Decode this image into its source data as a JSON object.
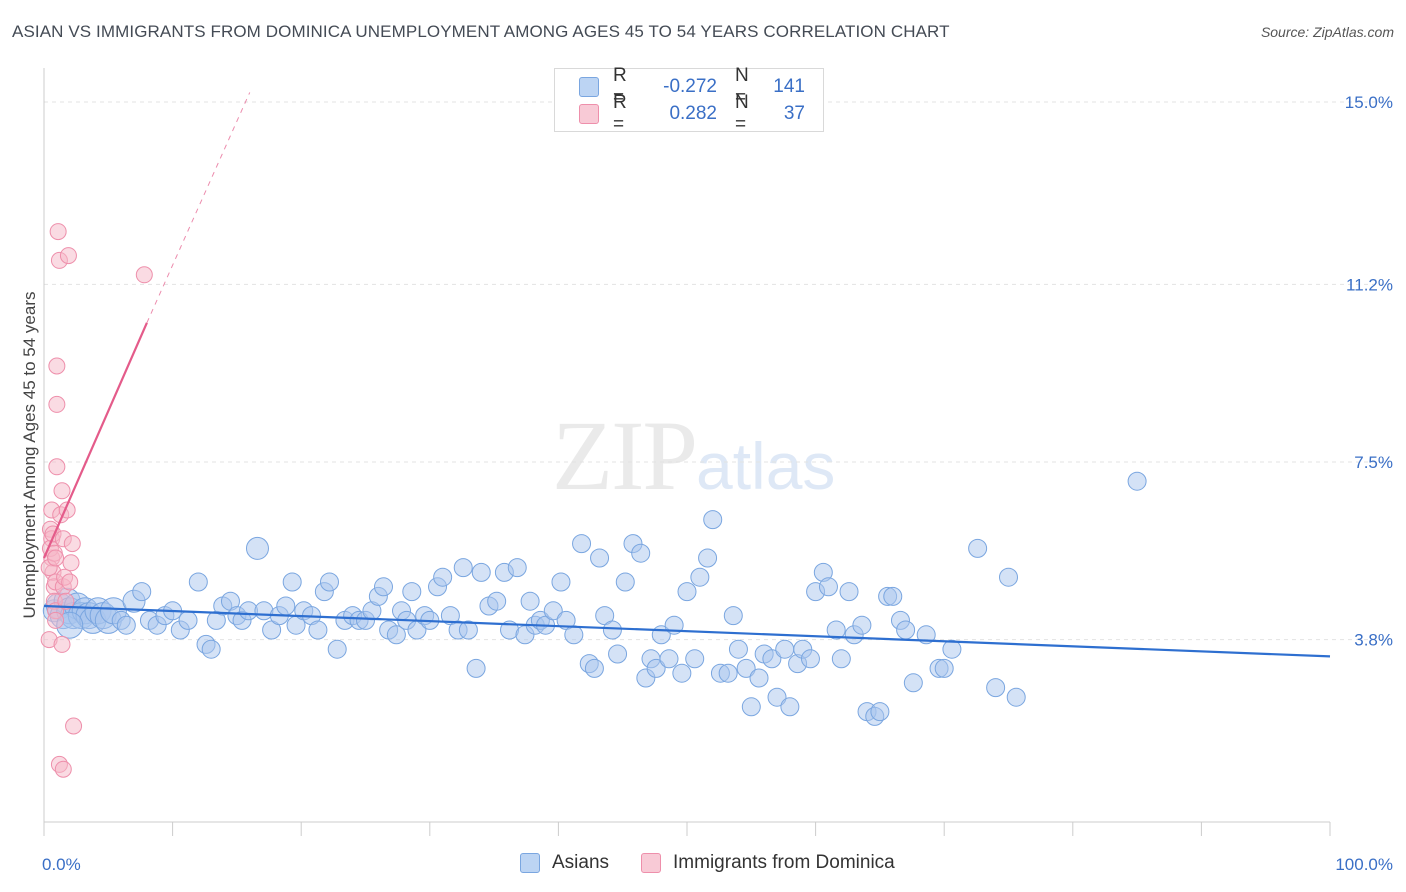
{
  "title": "ASIAN VS IMMIGRANTS FROM DOMINICA UNEMPLOYMENT AMONG AGES 45 TO 54 YEARS CORRELATION CHART",
  "source": "Source: ZipAtlas.com",
  "watermark": {
    "zip": "ZIP",
    "atlas": "atlas"
  },
  "legend_top": [
    {
      "r_label": "R =",
      "r_value": "-0.272",
      "n_label": "N =",
      "n_value": "141",
      "color": "#a9c6ee"
    },
    {
      "r_label": "R =",
      "r_value": "0.282",
      "n_label": "N =",
      "n_value": "37",
      "color": "#f5b8c8"
    }
  ],
  "legend_bottom": [
    {
      "label": "Asians",
      "color": "#a9c6ee"
    },
    {
      "label": "Immigrants from Dominica",
      "color": "#f5b8c8"
    }
  ],
  "colors": {
    "blue_fill": "#a9c6ee",
    "blue_stroke": "#7aa6e0",
    "blue_line": "#2e6fd0",
    "pink_fill": "#f5b8c8",
    "pink_stroke": "#ee8fab",
    "pink_line": "#e45b8a",
    "axis_text": "#3a6fc6",
    "grid": "#e3e3e3"
  },
  "chart_data": {
    "type": "scatter",
    "title": "ASIAN VS IMMIGRANTS FROM DOMINICA UNEMPLOYMENT AMONG AGES 45 TO 54 YEARS CORRELATION CHART",
    "xlabel": "",
    "ylabel": "Unemployment Among Ages 45 to 54 years",
    "xlim": [
      0,
      100
    ],
    "ylim": [
      0,
      15.5
    ],
    "x_tick_labels": [
      "0.0%",
      "100.0%"
    ],
    "y_ticks": [
      3.8,
      7.5,
      11.2,
      15.0
    ],
    "y_tick_labels": [
      "3.8%",
      "7.5%",
      "11.2%",
      "15.0%"
    ],
    "series": [
      {
        "name": "Asians",
        "r": -0.272,
        "n": 141,
        "trend": {
          "x": [
            0,
            100
          ],
          "y": [
            4.5,
            3.45
          ]
        },
        "points": [
          [
            0.8,
            4.4
          ],
          [
            1.2,
            4.5
          ],
          [
            1.5,
            4.3
          ],
          [
            1.8,
            4.6
          ],
          [
            2.0,
            4.4
          ],
          [
            2.3,
            4.3
          ],
          [
            2.6,
            4.5
          ],
          [
            2.9,
            4.3
          ],
          [
            3.2,
            4.4
          ],
          [
            3.5,
            4.3
          ],
          [
            3.8,
            4.2
          ],
          [
            4.2,
            4.4
          ],
          [
            4.6,
            4.3
          ],
          [
            5.0,
            4.2
          ],
          [
            5.4,
            4.4
          ],
          [
            6.0,
            4.2
          ],
          [
            6.4,
            4.1
          ],
          [
            7.0,
            4.6
          ],
          [
            7.6,
            4.8
          ],
          [
            8.2,
            4.2
          ],
          [
            8.8,
            4.1
          ],
          [
            9.4,
            4.3
          ],
          [
            10.0,
            4.4
          ],
          [
            10.6,
            4.0
          ],
          [
            11.2,
            4.2
          ],
          [
            12.0,
            5.0
          ],
          [
            12.6,
            3.7
          ],
          [
            13.0,
            3.6
          ],
          [
            13.4,
            4.2
          ],
          [
            13.9,
            4.5
          ],
          [
            14.5,
            4.6
          ],
          [
            15.0,
            4.3
          ],
          [
            15.4,
            4.2
          ],
          [
            15.9,
            4.4
          ],
          [
            16.6,
            5.7
          ],
          [
            17.1,
            4.4
          ],
          [
            17.7,
            4.0
          ],
          [
            18.3,
            4.3
          ],
          [
            18.8,
            4.5
          ],
          [
            19.3,
            5.0
          ],
          [
            19.6,
            4.1
          ],
          [
            20.2,
            4.4
          ],
          [
            20.8,
            4.3
          ],
          [
            21.3,
            4.0
          ],
          [
            21.8,
            4.8
          ],
          [
            22.2,
            5.0
          ],
          [
            22.8,
            3.6
          ],
          [
            23.4,
            4.2
          ],
          [
            24.0,
            4.3
          ],
          [
            24.5,
            4.2
          ],
          [
            25.0,
            4.2
          ],
          [
            25.5,
            4.4
          ],
          [
            26.0,
            4.7
          ],
          [
            26.4,
            4.9
          ],
          [
            26.8,
            4.0
          ],
          [
            27.4,
            3.9
          ],
          [
            27.8,
            4.4
          ],
          [
            28.2,
            4.2
          ],
          [
            28.6,
            4.8
          ],
          [
            29.0,
            4.0
          ],
          [
            29.6,
            4.3
          ],
          [
            30.0,
            4.2
          ],
          [
            30.6,
            4.9
          ],
          [
            31.0,
            5.1
          ],
          [
            31.6,
            4.3
          ],
          [
            32.2,
            4.0
          ],
          [
            32.6,
            5.3
          ],
          [
            33.0,
            4.0
          ],
          [
            33.6,
            3.2
          ],
          [
            34.0,
            5.2
          ],
          [
            34.6,
            4.5
          ],
          [
            35.2,
            4.6
          ],
          [
            35.8,
            5.2
          ],
          [
            36.2,
            4.0
          ],
          [
            36.8,
            5.3
          ],
          [
            37.4,
            3.9
          ],
          [
            37.8,
            4.6
          ],
          [
            38.2,
            4.1
          ],
          [
            38.6,
            4.2
          ],
          [
            39.0,
            4.1
          ],
          [
            39.6,
            4.4
          ],
          [
            40.2,
            5.0
          ],
          [
            40.6,
            4.2
          ],
          [
            41.2,
            3.9
          ],
          [
            41.8,
            5.8
          ],
          [
            42.4,
            3.3
          ],
          [
            42.8,
            3.2
          ],
          [
            43.2,
            5.5
          ],
          [
            43.6,
            4.3
          ],
          [
            44.2,
            4.0
          ],
          [
            44.6,
            3.5
          ],
          [
            45.2,
            5.0
          ],
          [
            45.8,
            5.8
          ],
          [
            46.4,
            5.6
          ],
          [
            46.8,
            3.0
          ],
          [
            47.2,
            3.4
          ],
          [
            47.6,
            3.2
          ],
          [
            48.0,
            3.9
          ],
          [
            48.6,
            3.4
          ],
          [
            49.0,
            4.1
          ],
          [
            49.6,
            3.1
          ],
          [
            50.0,
            4.8
          ],
          [
            50.6,
            3.4
          ],
          [
            51.0,
            5.1
          ],
          [
            51.6,
            5.5
          ],
          [
            52.0,
            6.3
          ],
          [
            52.6,
            3.1
          ],
          [
            53.2,
            3.1
          ],
          [
            53.6,
            4.3
          ],
          [
            54.0,
            3.6
          ],
          [
            54.6,
            3.2
          ],
          [
            55.0,
            2.4
          ],
          [
            55.6,
            3.0
          ],
          [
            56.0,
            3.5
          ],
          [
            56.6,
            3.4
          ],
          [
            57.0,
            2.6
          ],
          [
            57.6,
            3.6
          ],
          [
            58.0,
            2.4
          ],
          [
            58.6,
            3.3
          ],
          [
            59.0,
            3.6
          ],
          [
            59.6,
            3.4
          ],
          [
            60.0,
            4.8
          ],
          [
            60.6,
            5.2
          ],
          [
            61.0,
            4.9
          ],
          [
            61.6,
            4.0
          ],
          [
            62.0,
            3.4
          ],
          [
            62.6,
            4.8
          ],
          [
            63.0,
            3.9
          ],
          [
            63.6,
            4.1
          ],
          [
            64.0,
            2.3
          ],
          [
            64.6,
            2.2
          ],
          [
            65.0,
            2.3
          ],
          [
            65.6,
            4.7
          ],
          [
            66.0,
            4.7
          ],
          [
            66.6,
            4.2
          ],
          [
            67.0,
            4.0
          ],
          [
            67.6,
            2.9
          ],
          [
            68.6,
            3.9
          ],
          [
            69.6,
            3.2
          ],
          [
            70.0,
            3.2
          ],
          [
            70.6,
            3.6
          ],
          [
            72.6,
            5.7
          ],
          [
            74.0,
            2.8
          ],
          [
            75.0,
            5.1
          ],
          [
            75.6,
            2.6
          ],
          [
            85.0,
            7.1
          ],
          [
            2.0,
            4.1
          ]
        ]
      },
      {
        "name": "Immigrants from Dominica",
        "r": 0.282,
        "n": 37,
        "trend_solid": {
          "x": [
            0,
            8.0
          ],
          "y": [
            5.5,
            10.4
          ]
        },
        "trend_dashed": {
          "x": [
            8.0,
            16.0
          ],
          "y": [
            10.4,
            15.2
          ]
        },
        "points": [
          [
            0.5,
            6.1
          ],
          [
            0.6,
            5.9
          ],
          [
            0.6,
            5.5
          ],
          [
            0.7,
            5.2
          ],
          [
            0.8,
            4.9
          ],
          [
            0.8,
            4.6
          ],
          [
            0.9,
            4.4
          ],
          [
            0.9,
            4.2
          ],
          [
            0.4,
            5.3
          ],
          [
            0.5,
            5.7
          ],
          [
            0.6,
            6.5
          ],
          [
            0.7,
            6.0
          ],
          [
            0.8,
            5.6
          ],
          [
            0.9,
            5.0
          ],
          [
            1.0,
            7.4
          ],
          [
            1.0,
            8.7
          ],
          [
            1.0,
            9.5
          ],
          [
            1.1,
            12.3
          ],
          [
            1.2,
            11.7
          ],
          [
            1.3,
            6.4
          ],
          [
            1.4,
            6.9
          ],
          [
            1.5,
            5.9
          ],
          [
            1.5,
            4.9
          ],
          [
            1.6,
            5.1
          ],
          [
            1.7,
            4.6
          ],
          [
            1.8,
            6.5
          ],
          [
            1.9,
            11.8
          ],
          [
            2.0,
            5.0
          ],
          [
            2.1,
            5.4
          ],
          [
            2.2,
            5.8
          ],
          [
            2.3,
            2.0
          ],
          [
            0.4,
            3.8
          ],
          [
            1.4,
            3.7
          ],
          [
            1.2,
            1.2
          ],
          [
            1.5,
            1.1
          ],
          [
            7.8,
            11.4
          ],
          [
            0.9,
            5.5
          ]
        ]
      }
    ]
  }
}
